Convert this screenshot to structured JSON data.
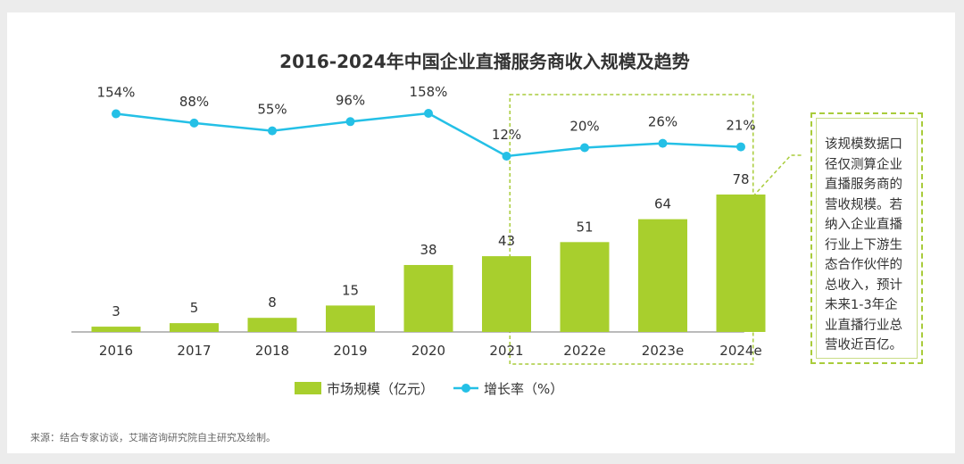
{
  "chart_data": {
    "type": "bar+line",
    "title": "2016-2024年中国企业直播服务商收入规模及趋势",
    "categories": [
      "2016",
      "2017",
      "2018",
      "2019",
      "2020",
      "2021",
      "2022e",
      "2023e",
      "2024e"
    ],
    "series": [
      {
        "name": "市场规模（亿元）",
        "type": "bar",
        "values": [
          3,
          5,
          8,
          15,
          38,
          43,
          51,
          64,
          78
        ],
        "labels": [
          "3",
          "5",
          "8",
          "15",
          "38",
          "43",
          "51",
          "64",
          "78"
        ]
      },
      {
        "name": "增长率（%）",
        "type": "line",
        "values": [
          154,
          88,
          55,
          96,
          158,
          12,
          20,
          26,
          21
        ],
        "labels": [
          "154%",
          "88%",
          "55%",
          "96%",
          "158%",
          "12%",
          "20%",
          "26%",
          "21%"
        ]
      }
    ],
    "forecast_categories": [
      "2022e",
      "2023e",
      "2024e"
    ],
    "legend": {
      "position": "bottom-center",
      "bar_label": "市场规模（亿元）",
      "line_label": "增长率（%）"
    },
    "ylim_bar": [
      0,
      90
    ],
    "ylim_line": [
      0,
      160
    ]
  },
  "note": {
    "lines": [
      "该规模数据口",
      "径仅测算企业",
      "直播服务商的",
      "营收规模。若",
      "纳入企业直播",
      "行业上下游生",
      "态合作伙伴的",
      "总收入，预计",
      "未来1-3年企",
      "业直播行业总",
      "营收近百亿。"
    ]
  },
  "source": "来源：结合专家访谈，艾瑞咨询研究院自主研究及绘制。",
  "colors": {
    "bar": "#a8cf2d",
    "line": "#24c0e6",
    "forecast_border": "#a9cc3b",
    "text": "#333333"
  }
}
